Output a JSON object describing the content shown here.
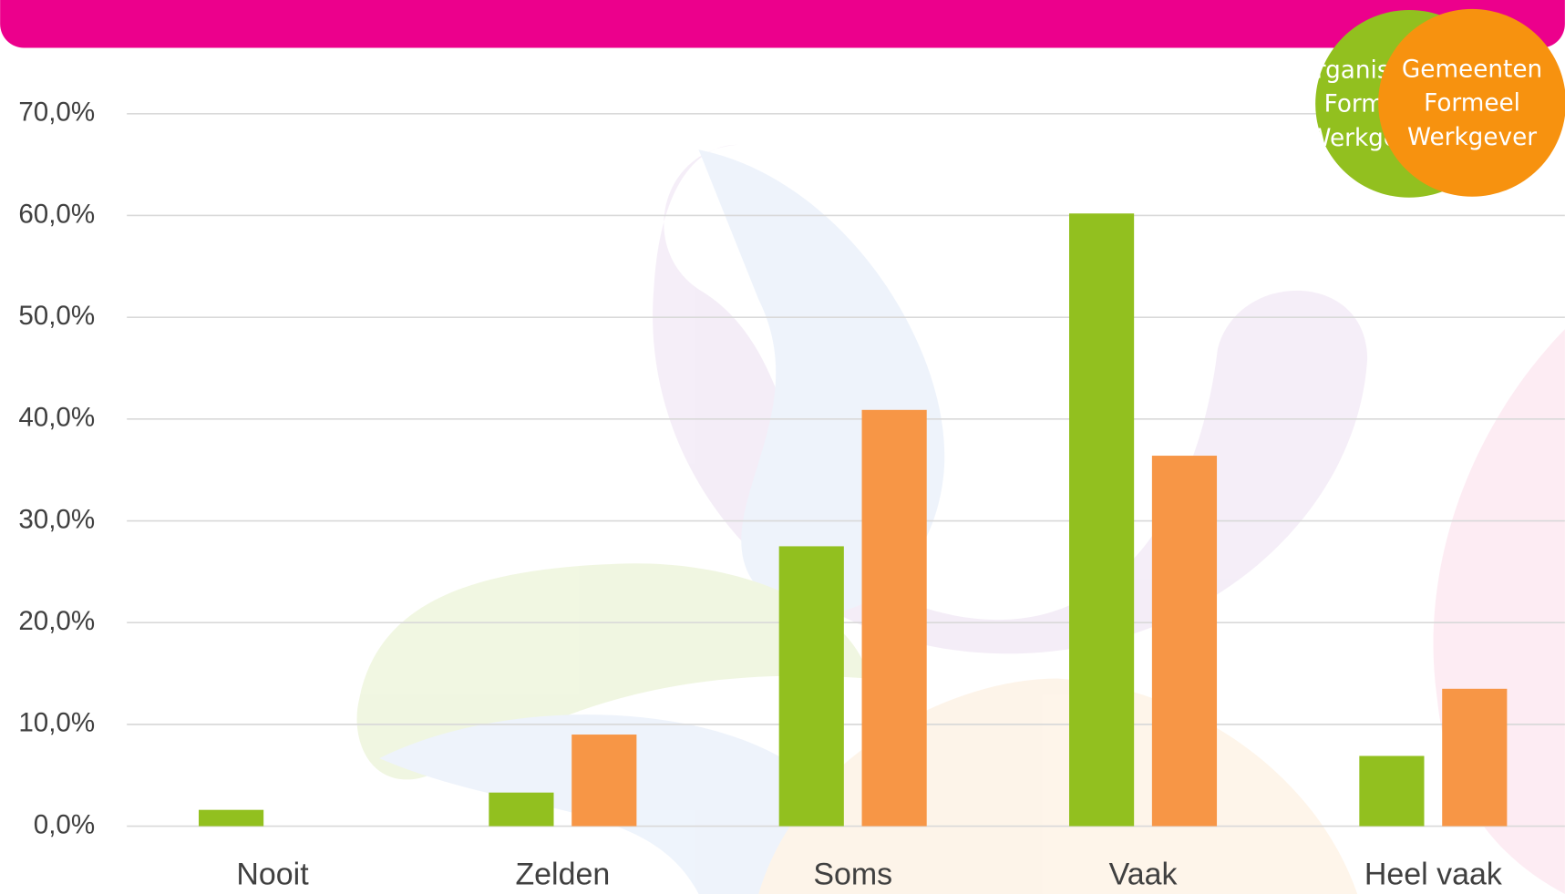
{
  "chart_data": {
    "type": "bar",
    "categories": [
      "Nooit",
      "Zelden",
      "Soms",
      "Vaak",
      "Heel vaak"
    ],
    "series": [
      {
        "name": "Organisaties Formeel Werkgever",
        "color": "#92c01f",
        "values": [
          1.6,
          3.3,
          27.5,
          60.2,
          6.9
        ]
      },
      {
        "name": "Gemeenten Formeel Werkgever",
        "color": "#f79646",
        "values": [
          0,
          9.0,
          40.9,
          36.4,
          13.5
        ]
      }
    ],
    "ylim": [
      0,
      70
    ],
    "yticks": [
      {
        "value": 0,
        "label": "0,0%"
      },
      {
        "value": 10,
        "label": "10,0%"
      },
      {
        "value": 20,
        "label": "20,0%"
      },
      {
        "value": 30,
        "label": "30,0%"
      },
      {
        "value": 40,
        "label": "40,0%"
      },
      {
        "value": 50,
        "label": "50,0%"
      },
      {
        "value": 60,
        "label": "60,0%"
      },
      {
        "value": 70,
        "label": "70,0%"
      }
    ],
    "grid": true
  }
}
